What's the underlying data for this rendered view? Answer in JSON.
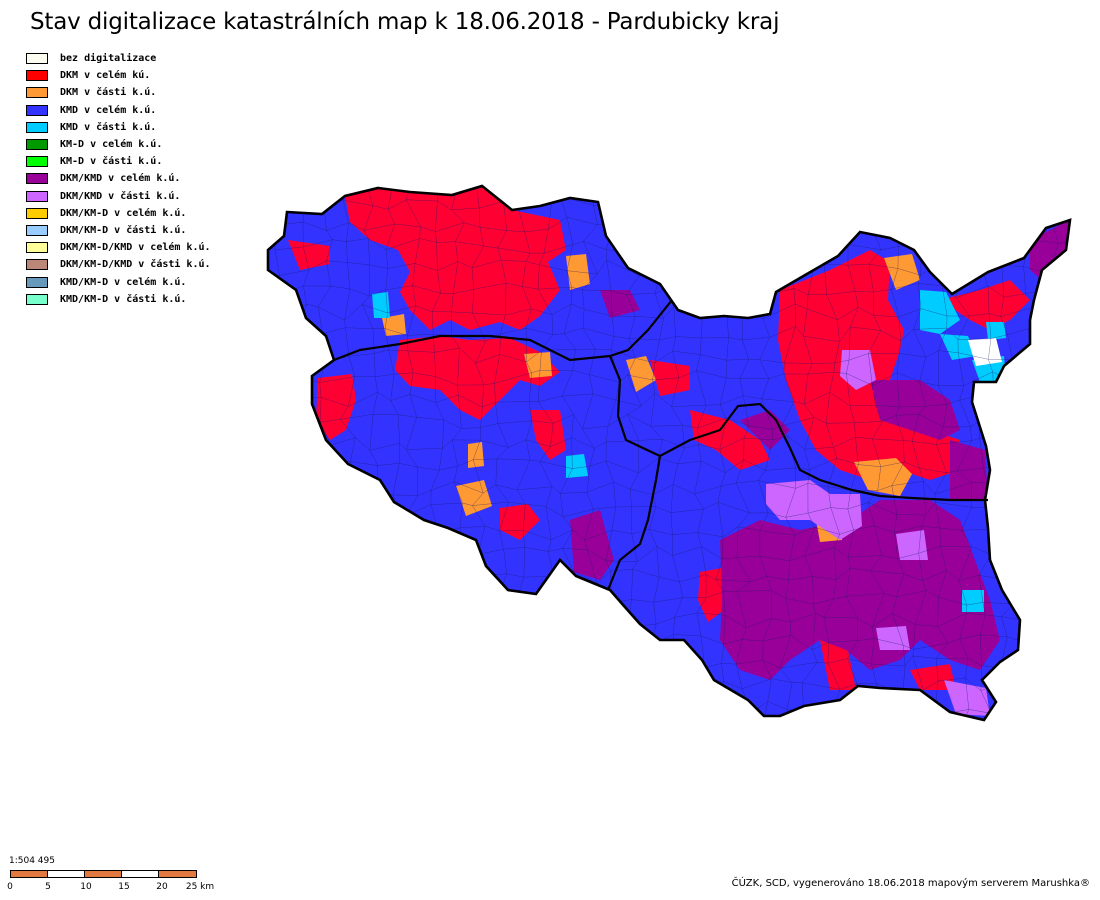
{
  "title": "Stav digitalizace katastrálních map k 18.06.2018 - Pardubicky kraj",
  "legend": [
    {
      "label": "bez digitalizace",
      "color": "#fdfdf0"
    },
    {
      "label": "DKM v celém kú.",
      "color": "#ff0000"
    },
    {
      "label": "DKM v části k.ú.",
      "color": "#ff9933"
    },
    {
      "label": "KMD v celém k.ú.",
      "color": "#3333ff"
    },
    {
      "label": "KMD v části k.ú.",
      "color": "#00ccff"
    },
    {
      "label": "KM-D v celém k.ú.",
      "color": "#009900"
    },
    {
      "label": "KM-D v části k.ú.",
      "color": "#00ff00"
    },
    {
      "label": "DKM/KMD v celém k.ú.",
      "color": "#990099"
    },
    {
      "label": "DKM/KMD v části k.ú.",
      "color": "#cc66ff"
    },
    {
      "label": "DKM/KM-D v celém k.ú.",
      "color": "#ffcc00"
    },
    {
      "label": "DKM/KM-D v části k.ú.",
      "color": "#99ccff"
    },
    {
      "label": "DKM/KM-D/KMD v celém k.ú.",
      "color": "#ffff99"
    },
    {
      "label": "DKM/KM-D/KMD v části k.ú.",
      "color": "#bb8877"
    },
    {
      "label": "KMD/KM-D v celém k.ú.",
      "color": "#6699bb"
    },
    {
      "label": "KMD/KM-D v části k.ú.",
      "color": "#77ffcc"
    }
  ],
  "map_colors": {
    "outline": "#000000",
    "parcel_edge": "#1a1a66"
  },
  "scale": {
    "ratio": "1:504 495",
    "ticks": [
      "0",
      "5",
      "10",
      "15",
      "20",
      "25 km"
    ],
    "colors": [
      "#e07a40",
      "#ffffff"
    ]
  },
  "credit": "ČÚZK, SCD, vygenerováno 18.06.2018 mapovým serverem Marushka®"
}
